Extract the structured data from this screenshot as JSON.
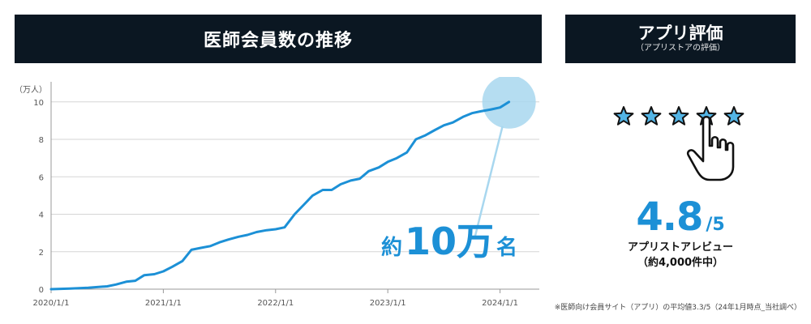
{
  "banners": {
    "left": "医師会員数の推移",
    "right_title": "アプリ評価",
    "right_sub": "（アプリストアの評価）"
  },
  "chart_data": {
    "type": "line",
    "unit_label": "（万人）",
    "x_tick_labels": [
      "2020/1/1",
      "2021/1/1",
      "2022/1/1",
      "2023/1/1",
      "2024/1/1"
    ],
    "y_ticks": [
      0,
      2,
      4,
      6,
      8,
      10
    ],
    "ylim": [
      0,
      10.9
    ],
    "xlim": [
      2020.0,
      2024.35
    ],
    "grid": true,
    "series": [
      {
        "color": "#1c90d6",
        "x": [
          2020.0,
          2020.17,
          2020.33,
          2020.5,
          2020.58,
          2020.67,
          2020.75,
          2020.83,
          2020.92,
          2021.0,
          2021.08,
          2021.17,
          2021.25,
          2021.33,
          2021.42,
          2021.5,
          2021.58,
          2021.67,
          2021.75,
          2021.83,
          2021.92,
          2022.0,
          2022.08,
          2022.17,
          2022.25,
          2022.33,
          2022.42,
          2022.5,
          2022.58,
          2022.67,
          2022.75,
          2022.83,
          2022.92,
          2023.0,
          2023.08,
          2023.17,
          2023.25,
          2023.33,
          2023.42,
          2023.5,
          2023.58,
          2023.67,
          2023.75,
          2023.83,
          2023.92,
          2024.0,
          2024.08
        ],
        "y": [
          0.0,
          0.03,
          0.08,
          0.15,
          0.25,
          0.4,
          0.45,
          0.75,
          0.8,
          0.95,
          1.2,
          1.5,
          2.1,
          2.2,
          2.3,
          2.5,
          2.65,
          2.8,
          2.9,
          3.05,
          3.15,
          3.2,
          3.3,
          4.0,
          4.5,
          5.0,
          5.3,
          5.3,
          5.6,
          5.8,
          5.9,
          6.3,
          6.5,
          6.8,
          7.0,
          7.3,
          8.0,
          8.2,
          8.5,
          8.75,
          8.9,
          9.2,
          9.4,
          9.5,
          9.6,
          9.7,
          10.0
        ]
      }
    ],
    "highlight": {
      "x": 2024.08,
      "y": 10.0,
      "color": "#a8d7ef"
    },
    "callout": {
      "prefix": "約",
      "number": "10万",
      "suffix": "名"
    }
  },
  "rating": {
    "stars": 5,
    "score": "4.8",
    "denominator": "/5",
    "line1": "アプリストアレビュー",
    "line2": "（約4,000件中）",
    "star_color": "#53b5e6",
    "icons": [
      "star-icon",
      "pointing-hand-icon"
    ]
  },
  "footnote": "※医師向け会員サイト（アプリ）の平均値3.3/5（24年1月時点_当社調べ）"
}
